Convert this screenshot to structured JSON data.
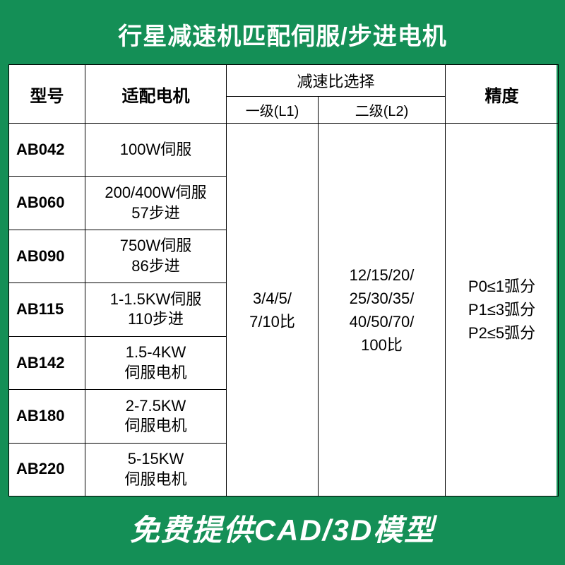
{
  "header": "行星减速机匹配伺服/步进电机",
  "footer": "免费提供CAD/3D模型",
  "tableHeaders": {
    "model": "型号",
    "motor": "适配电机",
    "ratioGroup": "减速比选择",
    "l1": "一级(L1)",
    "l2": "二级(L2)",
    "precision": "精度"
  },
  "rows": [
    {
      "model": "AB042",
      "motor": "100W伺服"
    },
    {
      "model": "AB060",
      "motor": "200/400W伺服\n57步进"
    },
    {
      "model": "AB090",
      "motor": "750W伺服\n86步进"
    },
    {
      "model": "AB115",
      "motor": "1-1.5KW伺服\n110步进"
    },
    {
      "model": "AB142",
      "motor": "1.5-4KW\n伺服电机"
    },
    {
      "model": "AB180",
      "motor": "2-7.5KW\n伺服电机"
    },
    {
      "model": "AB220",
      "motor": "5-15KW\n伺服电机"
    }
  ],
  "l1Value": "3/4/5/\n7/10比",
  "l2Value": "12/15/20/\n25/30/35/\n40/50/70/\n100比",
  "precisionValue": "P0≤1弧分\nP1≤3弧分\nP2≤5弧分",
  "colors": {
    "brand": "#148f56",
    "text": "#000000",
    "background": "#ffffff",
    "border": "#000000"
  },
  "fonts": {
    "headerSize": 34,
    "footerSize": 42,
    "thSize": 24,
    "tdSize": 22,
    "subThSize": 20
  }
}
